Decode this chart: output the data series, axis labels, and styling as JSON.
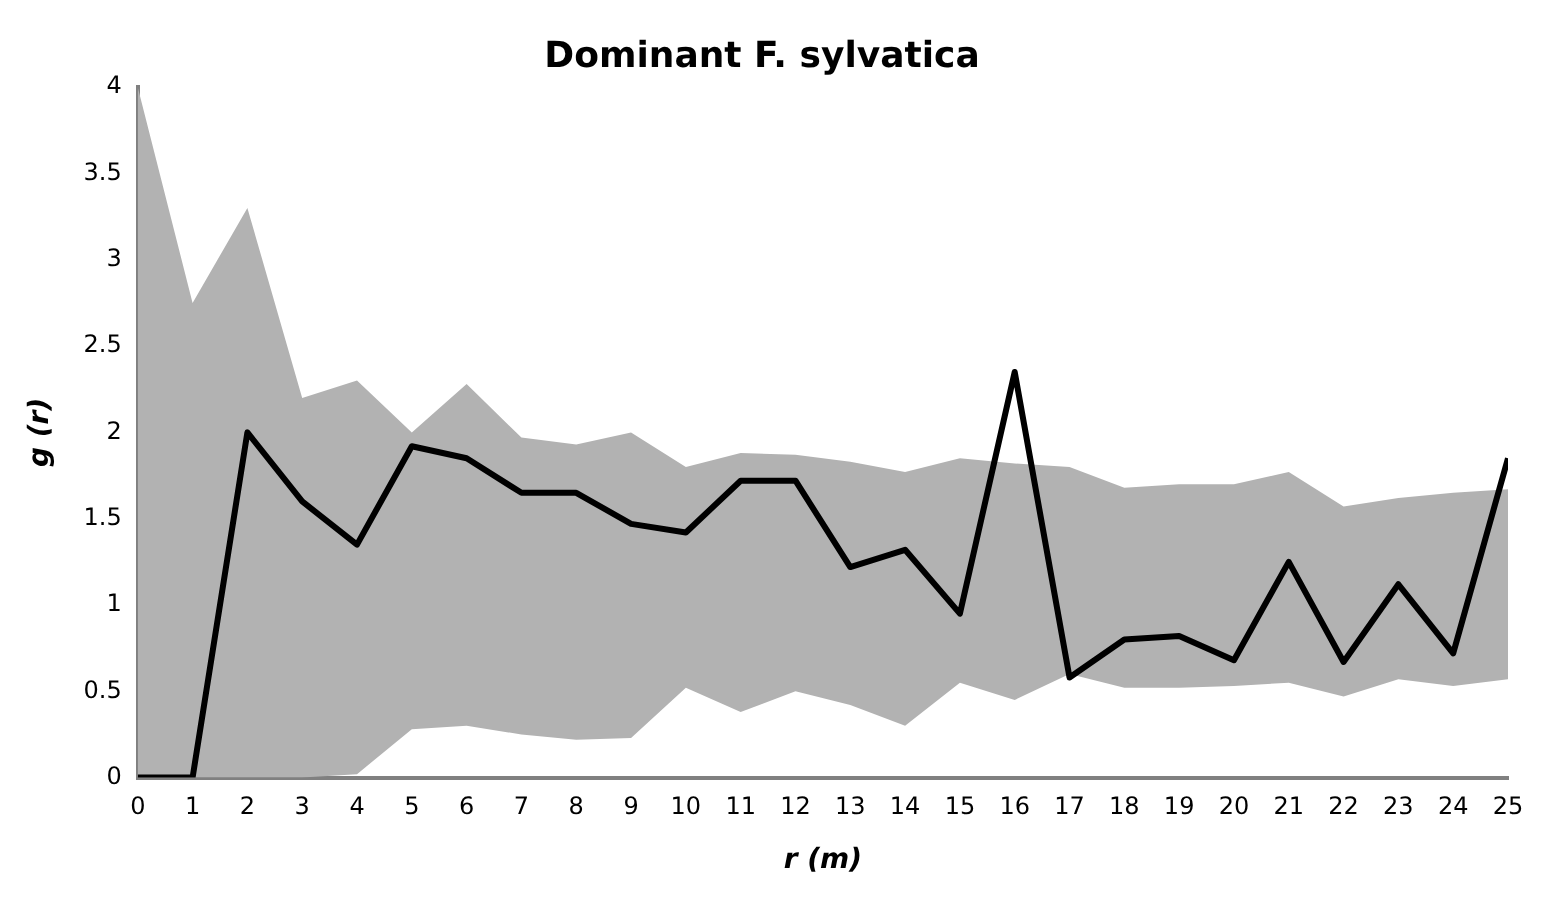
{
  "chart_data": {
    "type": "line",
    "title": "Dominant F. sylvatica",
    "xlabel": "r (m)",
    "ylabel": "g (r)",
    "x": [
      0,
      1,
      2,
      3,
      4,
      5,
      6,
      7,
      8,
      9,
      10,
      11,
      12,
      13,
      14,
      15,
      16,
      17,
      18,
      19,
      20,
      21,
      22,
      23,
      24,
      25
    ],
    "series": [
      {
        "color": "#000000",
        "values": [
          0,
          0,
          2.0,
          1.6,
          1.35,
          1.92,
          1.85,
          1.65,
          1.65,
          1.47,
          1.42,
          1.72,
          1.72,
          1.22,
          1.32,
          0.95,
          2.35,
          0.58,
          0.8,
          0.82,
          0.68,
          1.25,
          0.67,
          1.12,
          0.72,
          1.85
        ],
        "lower": [
          0,
          0,
          0,
          0,
          0.02,
          0.28,
          0.3,
          0.25,
          0.22,
          0.23,
          0.52,
          0.38,
          0.5,
          0.42,
          0.3,
          0.55,
          0.45,
          0.6,
          0.52,
          0.52,
          0.53,
          0.55,
          0.47,
          0.57,
          0.53,
          0.57
        ],
        "upper": [
          4,
          2.75,
          3.3,
          2.2,
          2.3,
          2.0,
          2.28,
          1.97,
          1.93,
          2.0,
          1.8,
          1.88,
          1.87,
          1.83,
          1.77,
          1.85,
          1.82,
          1.8,
          1.68,
          1.7,
          1.7,
          1.77,
          1.57,
          1.62,
          1.65,
          1.67
        ]
      }
    ],
    "xlim": [
      0,
      25
    ],
    "xticks": [
      0,
      1,
      2,
      3,
      4,
      5,
      6,
      7,
      8,
      9,
      10,
      11,
      12,
      13,
      14,
      15,
      16,
      17,
      18,
      19,
      20,
      21,
      22,
      23,
      24,
      25
    ],
    "ylim": [
      0,
      4
    ],
    "yticks": [
      0,
      0.5,
      1,
      1.5,
      2,
      2.5,
      3,
      3.5,
      4
    ],
    "grid": false,
    "legend": false,
    "marker": "none",
    "line_style": "solid"
  }
}
